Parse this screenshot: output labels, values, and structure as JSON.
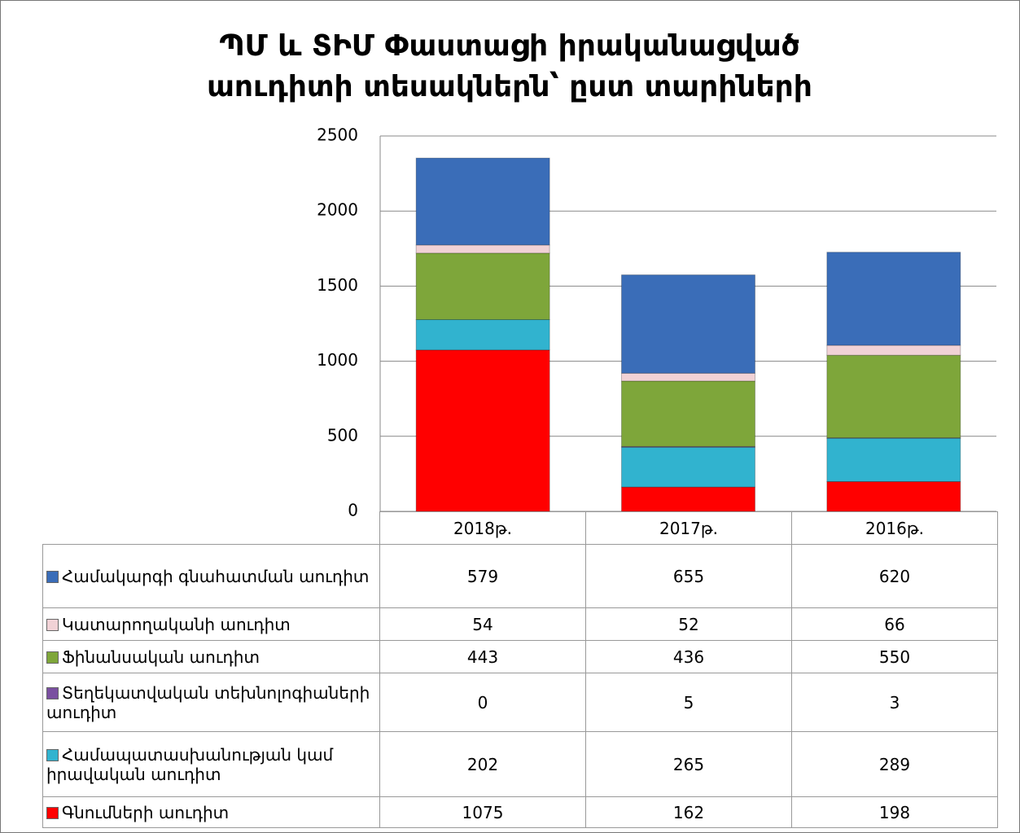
{
  "chart_data": {
    "type": "stacked_bar",
    "title": [
      "ՊՄ և ՏԻՄ Փաստացի իրականացված",
      "աուդիտի  տեսակներն՝ ըստ տարիների"
    ],
    "categories": [
      "2018թ.",
      "2017թ.",
      "2016թ."
    ],
    "series": [
      {
        "name": "Գնումների աուդիտ",
        "color": "#ff0000",
        "values": [
          1075,
          162,
          198
        ]
      },
      {
        "name": "Համապատասխանության կամ իրավական աուդիտ",
        "color": "#31b3cf",
        "values": [
          202,
          265,
          289
        ]
      },
      {
        "name": "Տեղեկատվական տեխնոլոգիաների աուդիտ",
        "color": "#7a4fa0",
        "values": [
          0,
          5,
          3
        ]
      },
      {
        "name": "Ֆինանսական աուդիտ",
        "color": "#7ea63a",
        "values": [
          443,
          436,
          550
        ]
      },
      {
        "name": "Կատարողականի աուդիտ",
        "color": "#f1d2d6",
        "values": [
          54,
          52,
          66
        ]
      },
      {
        "name": "Համակարգի գնահատման աուդիտ",
        "color": "#3a6db8",
        "values": [
          579,
          655,
          620
        ]
      }
    ],
    "ylim": [
      0,
      2500
    ],
    "yticks": [
      0,
      500,
      1000,
      1500,
      2000,
      2500
    ],
    "grid": true
  }
}
